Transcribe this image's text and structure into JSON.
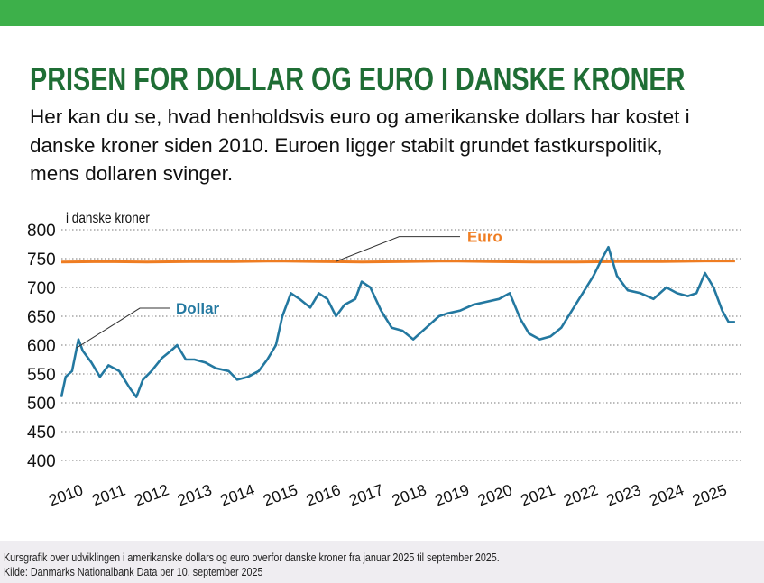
{
  "header": {
    "accent_color": "#3db04a",
    "title": "PRISEN FOR DOLLAR OG EURO I DANSKE KRONER",
    "title_color": "#1f6e35",
    "subtitle": "Her kan du se, hvad henholdsvis euro og amerikanske dollars har kostet i danske kroner siden 2010. Euroen ligger stabilt grundet fastkurspolitik, mens dollaren svinger."
  },
  "chart_data": {
    "type": "line",
    "title": "",
    "xlabel": "",
    "ylabel": "i danske kroner",
    "ylim": [
      400,
      800
    ],
    "xlim": [
      2010,
      2025.85
    ],
    "yticks": [
      800,
      750,
      700,
      650,
      600,
      550,
      500,
      450,
      400
    ],
    "xticks": [
      "2010",
      "2011",
      "2012",
      "2013",
      "2014",
      "2015",
      "2016",
      "2017",
      "2018",
      "2019",
      "2020",
      "2021",
      "2022",
      "2023",
      "2024",
      "2025"
    ],
    "grid": true,
    "series": [
      {
        "name": "Euro",
        "color": "#ef7d22",
        "x": [
          2010.0,
          2011.0,
          2012.0,
          2013.0,
          2014.0,
          2015.0,
          2016.0,
          2017.0,
          2018.0,
          2019.0,
          2020.0,
          2021.0,
          2022.0,
          2023.0,
          2024.0,
          2025.0,
          2025.7
        ],
        "y": [
          744,
          745,
          744,
          745,
          745,
          746,
          745,
          744,
          745,
          746,
          745,
          744,
          744,
          745,
          745,
          746,
          746
        ]
      },
      {
        "name": "Dollar",
        "color": "#2378a0",
        "x": [
          2010.0,
          2010.1,
          2010.25,
          2010.4,
          2010.5,
          2010.7,
          2010.9,
          2011.1,
          2011.35,
          2011.6,
          2011.75,
          2011.9,
          2012.1,
          2012.35,
          2012.55,
          2012.7,
          2012.9,
          2013.1,
          2013.35,
          2013.6,
          2013.9,
          2014.1,
          2014.35,
          2014.6,
          2014.8,
          2015.0,
          2015.15,
          2015.35,
          2015.55,
          2015.8,
          2016.0,
          2016.2,
          2016.4,
          2016.6,
          2016.85,
          2017.0,
          2017.2,
          2017.45,
          2017.7,
          2017.95,
          2018.2,
          2018.5,
          2018.8,
          2019.0,
          2019.3,
          2019.6,
          2019.9,
          2020.2,
          2020.45,
          2020.7,
          2020.9,
          2021.15,
          2021.4,
          2021.65,
          2021.9,
          2022.15,
          2022.4,
          2022.6,
          2022.75,
          2022.95,
          2023.2,
          2023.5,
          2023.8,
          2024.1,
          2024.35,
          2024.6,
          2024.8,
          2025.0,
          2025.2,
          2025.4,
          2025.55,
          2025.7
        ],
        "y": [
          510,
          545,
          555,
          610,
          590,
          570,
          545,
          565,
          555,
          525,
          510,
          540,
          555,
          578,
          590,
          600,
          575,
          575,
          570,
          560,
          555,
          540,
          545,
          555,
          575,
          600,
          650,
          690,
          680,
          665,
          690,
          680,
          650,
          670,
          680,
          710,
          700,
          660,
          630,
          625,
          610,
          630,
          650,
          655,
          660,
          670,
          675,
          680,
          690,
          645,
          620,
          610,
          615,
          630,
          660,
          690,
          720,
          750,
          770,
          720,
          695,
          690,
          680,
          700,
          690,
          685,
          690,
          725,
          700,
          660,
          640,
          640
        ]
      }
    ],
    "annotations": [
      "Euro",
      "Dollar"
    ]
  },
  "footer": {
    "line1": "Kursgrafik over udviklingen i amerikanske dollars og euro overfor danske kroner fra januar 2025 til september 2025.",
    "line2": "Kilde: Danmarks Nationalbank  Data per 10. september 2025"
  }
}
